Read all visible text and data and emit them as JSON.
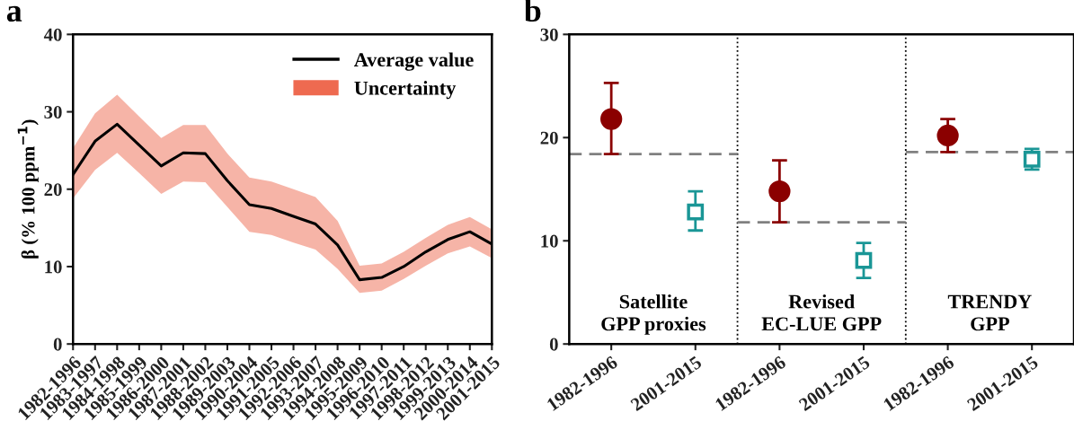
{
  "chart_data": [
    {
      "type": "line",
      "title": "a",
      "ylabel": "β (% 100 ppm$^{−1}$)",
      "categories": [
        "1982-1996",
        "1983-1997",
        "1984-1998",
        "1985-1999",
        "1986-2000",
        "1987-2001",
        "1988-2002",
        "1989-2003",
        "1990-2004",
        "1991-2005",
        "1992-2006",
        "1993-2007",
        "1994-2008",
        "1995-2009",
        "1996-2010",
        "1997-2011",
        "1998-2012",
        "1999-2013",
        "2000-2014",
        "2001-2015"
      ],
      "series": [
        {
          "name": "Average value",
          "color": "#000000",
          "values": [
            21.9,
            26.2,
            28.4,
            25.7,
            23.0,
            24.7,
            24.6,
            21.1,
            18.0,
            17.5,
            16.5,
            15.5,
            12.8,
            8.3,
            8.6,
            10.0,
            11.9,
            13.5,
            14.5,
            12.9
          ],
          "lower": [
            18.8,
            22.5,
            24.7,
            22.1,
            19.4,
            21.0,
            20.9,
            17.7,
            14.5,
            14.1,
            13.1,
            12.2,
            9.7,
            6.6,
            6.9,
            8.4,
            10.1,
            11.7,
            12.6,
            11.1
          ],
          "upper": [
            25.3,
            29.8,
            32.2,
            29.4,
            26.6,
            28.3,
            28.3,
            24.6,
            21.5,
            21.0,
            20.0,
            19.0,
            15.9,
            10.1,
            10.4,
            11.9,
            13.7,
            15.4,
            16.4,
            14.8
          ]
        },
        {
          "type": "area",
          "name": "Uncertainty",
          "color": "#ee6a50",
          "values": [
            null,
            null,
            null,
            null,
            null,
            null,
            null,
            null,
            null,
            null,
            null,
            null,
            null,
            null,
            null,
            null,
            null,
            null,
            null,
            null
          ]
        }
      ],
      "ylim": [
        0,
        40
      ],
      "yticks": [
        0,
        10,
        20,
        30,
        40
      ],
      "grid": false,
      "legend": "top right"
    },
    {
      "type": "scatter",
      "title": "b",
      "categories": [
        "1982-1996",
        "2001-2015",
        "1982-1996",
        "2001-2015",
        "1982-1996",
        "2001-2015"
      ],
      "series": [
        {
          "color": "#8b0000",
          "marker": "circle",
          "values": [
            21.8,
            null,
            14.8,
            null,
            20.2,
            null
          ],
          "errors": [
            [
              18.4,
              25.3
            ],
            null,
            [
              11.8,
              17.8
            ],
            null,
            [
              18.6,
              21.8
            ],
            null
          ]
        },
        {
          "color": "#1a9696",
          "marker": "square",
          "values": [
            null,
            12.8,
            null,
            8.1,
            null,
            17.9
          ],
          "errors": [
            null,
            [
              11.0,
              14.8
            ],
            null,
            [
              6.4,
              9.8
            ],
            null,
            [
              16.9,
              18.9
            ]
          ]
        }
      ],
      "ref_lines": [
        {
          "axis": "y",
          "value": 18.4,
          "color": "#808080",
          "line_style": "dashed"
        },
        {
          "axis": "y",
          "value": 11.8,
          "color": "#808080",
          "line_style": "dashed"
        },
        {
          "axis": "y",
          "value": 18.6,
          "color": "#808080",
          "line_style": "dashed"
        }
      ],
      "annotations": [
        "Satellite\nGPP proxies",
        "Revised\nEC-LUE GPP",
        "TRENDY\nGPP"
      ],
      "ylim": [
        0,
        30
      ],
      "yticks": [
        0,
        10,
        20,
        30
      ],
      "grid": false
    }
  ]
}
